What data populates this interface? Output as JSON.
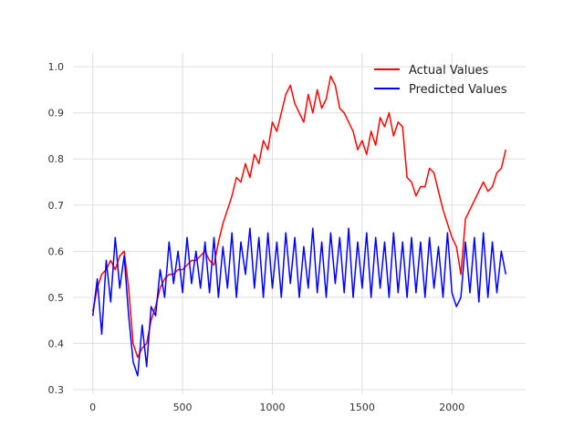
{
  "chart_data": {
    "type": "line",
    "title": "",
    "xlabel": "",
    "ylabel": "",
    "xlim": [
      -110,
      2410
    ],
    "ylim": [
      0.29,
      1.03
    ],
    "x_ticks": [
      0,
      500,
      1000,
      1500,
      2000
    ],
    "y_ticks": [
      0.3,
      0.4,
      0.5,
      0.6,
      0.7,
      0.8,
      0.9,
      1.0
    ],
    "x_tick_labels": [
      "0",
      "500",
      "1000",
      "1500",
      "2000"
    ],
    "y_tick_labels": [
      "0.3",
      "0.4",
      "0.5",
      "0.6",
      "0.7",
      "0.8",
      "0.9",
      "1.0"
    ],
    "grid": true,
    "legend_position": "top-right",
    "series": [
      {
        "name": "Actual Values",
        "color": "#ff0000",
        "x": [
          0,
          25,
          50,
          75,
          100,
          125,
          150,
          175,
          200,
          225,
          250,
          275,
          300,
          325,
          350,
          375,
          400,
          425,
          450,
          475,
          500,
          525,
          550,
          575,
          600,
          625,
          650,
          675,
          700,
          725,
          750,
          775,
          800,
          825,
          850,
          875,
          900,
          925,
          950,
          975,
          1000,
          1025,
          1050,
          1075,
          1100,
          1125,
          1150,
          1175,
          1200,
          1225,
          1250,
          1275,
          1300,
          1325,
          1350,
          1375,
          1400,
          1425,
          1450,
          1475,
          1500,
          1525,
          1550,
          1575,
          1600,
          1625,
          1650,
          1675,
          1700,
          1725,
          1750,
          1775,
          1800,
          1825,
          1850,
          1875,
          1900,
          1925,
          1950,
          1975,
          2000,
          2025,
          2050,
          2075,
          2100,
          2125,
          2150,
          2175,
          2200,
          2225,
          2250,
          2275,
          2300
        ],
        "y": [
          0.47,
          0.52,
          0.55,
          0.56,
          0.58,
          0.56,
          0.59,
          0.6,
          0.52,
          0.4,
          0.37,
          0.39,
          0.4,
          0.45,
          0.48,
          0.52,
          0.54,
          0.55,
          0.55,
          0.56,
          0.56,
          0.57,
          0.58,
          0.58,
          0.59,
          0.6,
          0.58,
          0.57,
          0.62,
          0.66,
          0.69,
          0.72,
          0.76,
          0.75,
          0.79,
          0.76,
          0.81,
          0.79,
          0.84,
          0.82,
          0.88,
          0.86,
          0.9,
          0.94,
          0.96,
          0.92,
          0.9,
          0.88,
          0.94,
          0.9,
          0.95,
          0.91,
          0.93,
          0.98,
          0.96,
          0.91,
          0.9,
          0.88,
          0.86,
          0.82,
          0.84,
          0.81,
          0.86,
          0.83,
          0.89,
          0.87,
          0.9,
          0.85,
          0.88,
          0.87,
          0.76,
          0.75,
          0.72,
          0.74,
          0.74,
          0.78,
          0.77,
          0.73,
          0.69,
          0.66,
          0.63,
          0.61,
          0.55,
          0.67,
          0.69,
          0.71,
          0.73,
          0.75,
          0.73,
          0.74,
          0.77,
          0.78,
          0.82
        ]
      },
      {
        "name": "Predicted Values",
        "color": "#0000ff",
        "x": [
          0,
          25,
          50,
          75,
          100,
          125,
          150,
          175,
          200,
          225,
          250,
          275,
          300,
          325,
          350,
          375,
          400,
          425,
          450,
          475,
          500,
          525,
          550,
          575,
          600,
          625,
          650,
          675,
          700,
          725,
          750,
          775,
          800,
          825,
          850,
          875,
          900,
          925,
          950,
          975,
          1000,
          1025,
          1050,
          1075,
          1100,
          1125,
          1150,
          1175,
          1200,
          1225,
          1250,
          1275,
          1300,
          1325,
          1350,
          1375,
          1400,
          1425,
          1450,
          1475,
          1500,
          1525,
          1550,
          1575,
          1600,
          1625,
          1650,
          1675,
          1700,
          1725,
          1750,
          1775,
          1800,
          1825,
          1850,
          1875,
          1900,
          1925,
          1950,
          1975,
          2000,
          2025,
          2050,
          2075,
          2100,
          2125,
          2150,
          2175,
          2200,
          2225,
          2250,
          2275,
          2300
        ],
        "y": [
          0.46,
          0.54,
          0.42,
          0.58,
          0.49,
          0.63,
          0.52,
          0.59,
          0.46,
          0.36,
          0.33,
          0.44,
          0.35,
          0.48,
          0.46,
          0.56,
          0.5,
          0.62,
          0.53,
          0.6,
          0.51,
          0.63,
          0.53,
          0.6,
          0.52,
          0.62,
          0.51,
          0.63,
          0.5,
          0.61,
          0.52,
          0.64,
          0.5,
          0.62,
          0.55,
          0.65,
          0.52,
          0.63,
          0.5,
          0.64,
          0.52,
          0.62,
          0.5,
          0.64,
          0.53,
          0.63,
          0.5,
          0.61,
          0.52,
          0.65,
          0.51,
          0.62,
          0.5,
          0.64,
          0.53,
          0.63,
          0.51,
          0.65,
          0.5,
          0.62,
          0.52,
          0.64,
          0.5,
          0.63,
          0.52,
          0.62,
          0.5,
          0.64,
          0.51,
          0.62,
          0.5,
          0.63,
          0.51,
          0.62,
          0.5,
          0.63,
          0.52,
          0.61,
          0.5,
          0.64,
          0.51,
          0.48,
          0.5,
          0.62,
          0.51,
          0.63,
          0.49,
          0.64,
          0.5,
          0.62,
          0.51,
          0.6,
          0.55
        ]
      }
    ]
  }
}
